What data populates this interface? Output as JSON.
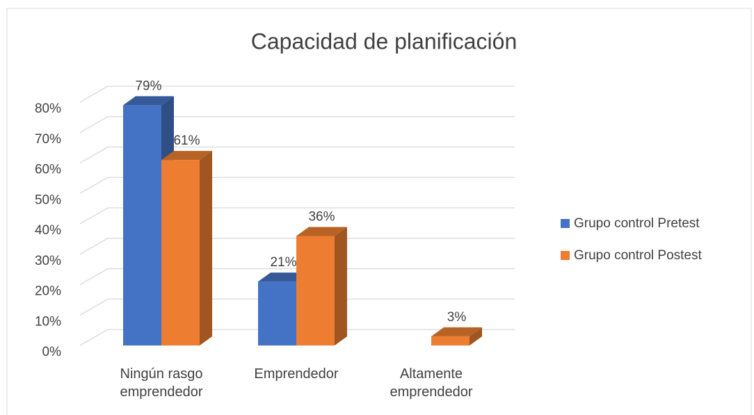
{
  "chart_data": {
    "type": "bar3d",
    "title": "Capacidad de planificación",
    "categories": [
      "Ningún rasgo emprendedor",
      "Emprendedor",
      "Altamente emprendedor"
    ],
    "series": [
      {
        "name": "Grupo control Pretest",
        "color": "#4472c4",
        "values": [
          79,
          21,
          null
        ],
        "value_labels": [
          "79%",
          "21%",
          null
        ]
      },
      {
        "name": "Grupo control Postest",
        "color": "#ed7d31",
        "values": [
          61,
          36,
          3
        ],
        "value_labels": [
          "61%",
          "36%",
          "3%"
        ]
      }
    ],
    "ylim": [
      0,
      80
    ],
    "yticks": [
      {
        "value": 0,
        "label": "0%"
      },
      {
        "value": 10,
        "label": "10%"
      },
      {
        "value": 20,
        "label": "20%"
      },
      {
        "value": 30,
        "label": "30%"
      },
      {
        "value": 40,
        "label": "40%"
      },
      {
        "value": 50,
        "label": "50%"
      },
      {
        "value": 60,
        "label": "60%"
      },
      {
        "value": 70,
        "label": "70%"
      },
      {
        "value": 80,
        "label": "80%"
      }
    ],
    "grid": true,
    "legend": "right"
  }
}
